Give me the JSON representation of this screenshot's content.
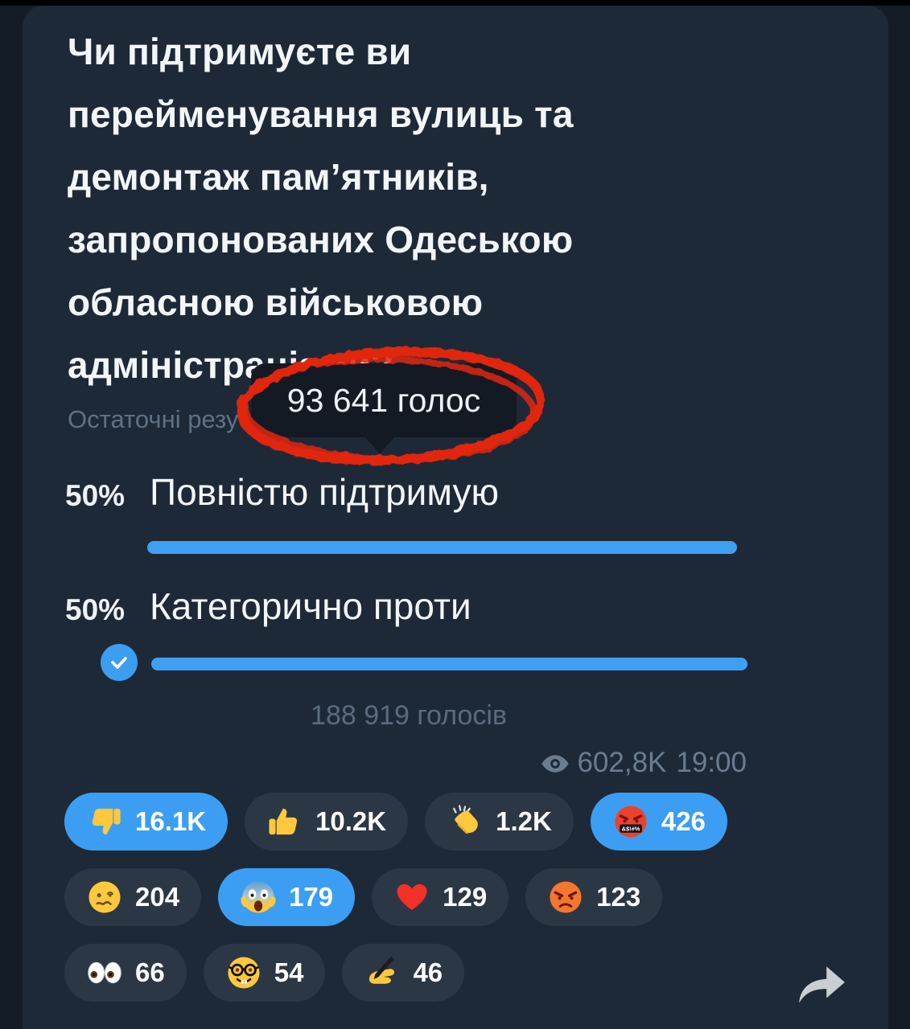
{
  "poll": {
    "question_lines": [
      "Чи підтримуєте ви",
      "перейменування вулиць та",
      "демонтаж пам’ятників,",
      "запропонованих Одеською",
      "обласною військовою",
      "адміністраціями?"
    ],
    "results_label": "Остаточні резу",
    "tooltip": {
      "votes_label": "93 641 голос"
    },
    "options": [
      {
        "percent": "50%",
        "label": "Повністю підтримую",
        "chosen": false
      },
      {
        "percent": "50%",
        "label": "Категорично проти",
        "chosen": true
      }
    ],
    "total_votes": "188 919 голосів"
  },
  "meta": {
    "views": "602,8K",
    "time": "19:00",
    "eye_icon": "eye-icon"
  },
  "reactions": {
    "rows": [
      [
        {
          "icon": "thumbs-down",
          "count": "16.1K",
          "selected": true
        },
        {
          "icon": "thumbs-up",
          "count": "10.2K",
          "selected": false
        },
        {
          "icon": "clap",
          "count": "1.2K",
          "selected": false
        },
        {
          "icon": "cursing-face",
          "count": "426",
          "selected": true
        }
      ],
      [
        {
          "icon": "woozy-face",
          "count": "204",
          "selected": false
        },
        {
          "icon": "scream-face",
          "count": "179",
          "selected": true
        },
        {
          "icon": "red-heart",
          "count": "129",
          "selected": false
        },
        {
          "icon": "angry-face",
          "count": "123",
          "selected": false
        }
      ],
      [
        {
          "icon": "eyes",
          "count": "66",
          "selected": false
        },
        {
          "icon": "nerd-face",
          "count": "54",
          "selected": false
        },
        {
          "icon": "writing-hand",
          "count": "46",
          "selected": false
        }
      ]
    ]
  },
  "share_icon": "forward-arrow-icon",
  "annotation": {
    "type": "hand-drawn-red-ellipse",
    "color": "#e0260f"
  },
  "colors": {
    "accent_blue": "#3fa0f1",
    "selected_pill_blue": "#3c9ef3",
    "pill_background": "#2c3745",
    "bubble_background": "#1e2938",
    "annotation_red": "#e0260f"
  }
}
